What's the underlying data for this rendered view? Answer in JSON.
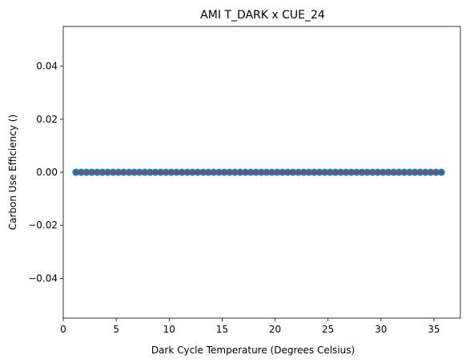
{
  "chart_data": {
    "type": "scatter",
    "title": "AMI T_DARK x CUE_24",
    "xlabel": "Dark Cycle Temperature (Degrees Celsius)",
    "ylabel": "Carbon Use Efficiency ()",
    "xlim": [
      0.0,
      37.5
    ],
    "ylim": [
      -0.055,
      0.055
    ],
    "xticks": [
      0,
      5,
      10,
      15,
      20,
      25,
      30,
      35
    ],
    "yticks": [
      -0.04,
      -0.02,
      0.0,
      0.02,
      0.04
    ],
    "yticklabels": [
      "−0.04",
      "−0.02",
      "0.00",
      "0.02",
      "0.04"
    ],
    "grid": false,
    "legend": "none",
    "x_start": 1.2,
    "x_end": 35.8,
    "x_step": 0.5,
    "y_value": 0.0,
    "trendline": {
      "x": [
        1.2,
        35.8
      ],
      "y": [
        0.0,
        0.0
      ],
      "color": "#d62728"
    },
    "marker_color": "#1f77b4"
  }
}
